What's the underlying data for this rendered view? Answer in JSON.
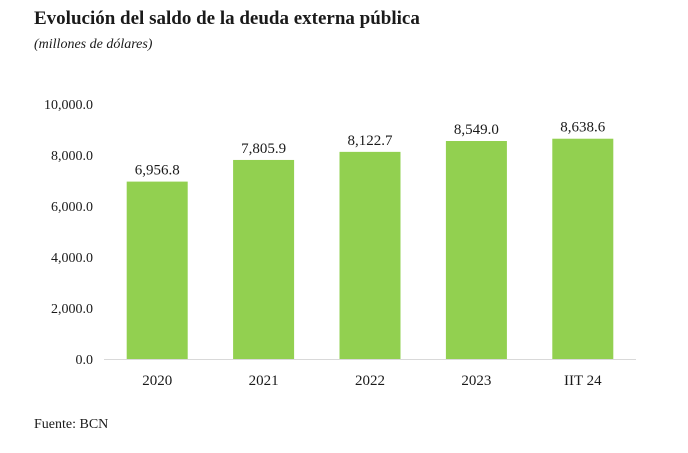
{
  "header": {
    "title": "Evolución del saldo de la deuda externa pública",
    "subtitle": "(millones de dólares)"
  },
  "footer": {
    "source": "Fuente: BCN"
  },
  "chart_data": {
    "type": "bar",
    "title": "Evolución del saldo de la deuda externa pública",
    "subtitle": "(millones de dólares)",
    "categories": [
      "2020",
      "2021",
      "2022",
      "2023",
      "IIT 24"
    ],
    "values": [
      6956.8,
      7805.9,
      8122.7,
      8549.0,
      8638.6
    ],
    "value_labels": [
      "6,956.8",
      "7,805.9",
      "8,122.7",
      "8,549.0",
      "8,638.6"
    ],
    "ylim": [
      0,
      10000
    ],
    "yticks": [
      0,
      2000,
      4000,
      6000,
      8000,
      10000
    ],
    "ytick_labels": [
      "0.0",
      "2,000.0",
      "4,000.0",
      "6,000.0",
      "8,000.0",
      "10,000.0"
    ],
    "xlabel": "",
    "ylabel": "",
    "grid": false,
    "legend": "none",
    "colors": {
      "bar": "#92d050",
      "axis": "#d9d9d9"
    }
  }
}
